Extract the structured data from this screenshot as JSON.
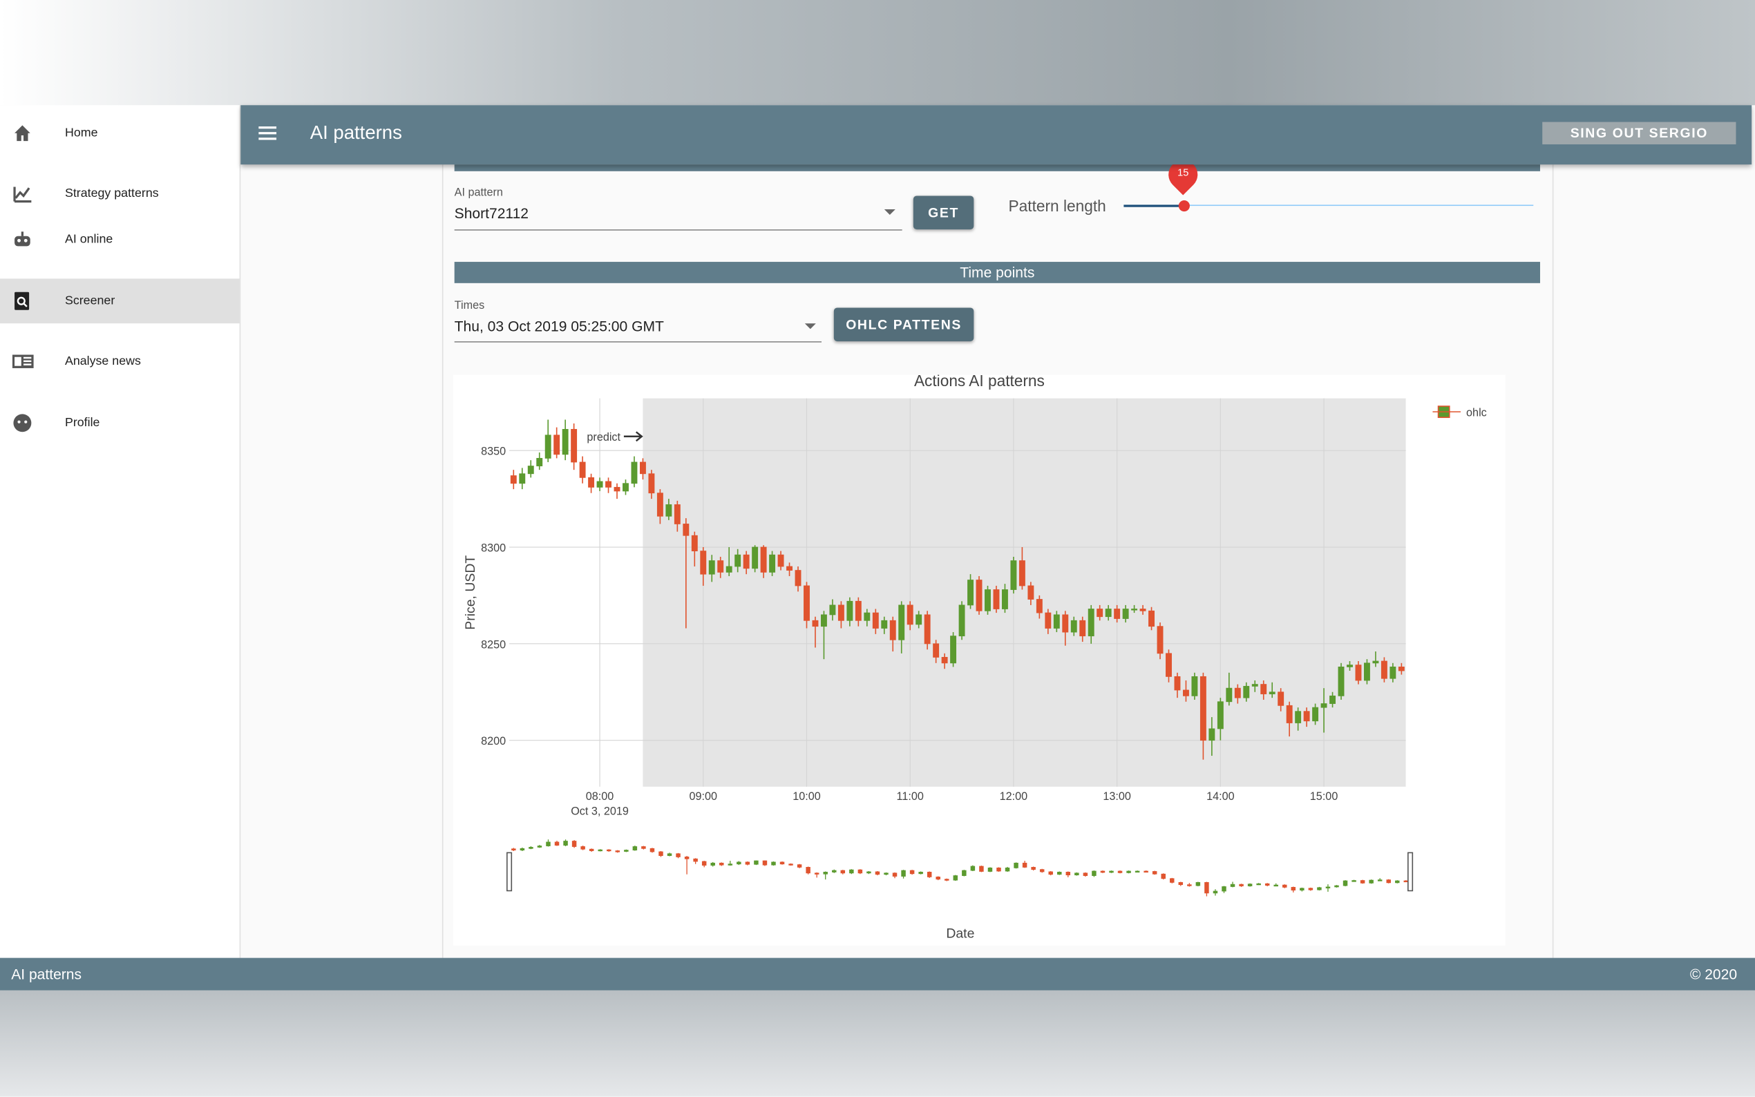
{
  "sidebar": {
    "items": [
      "Home",
      "Strategy patterns",
      "AI online",
      "Screener",
      "Analyse news",
      "Profile"
    ],
    "selected": "Screener"
  },
  "appbar": {
    "title": "AI patterns",
    "signout": "SING OUT SERGIO"
  },
  "form": {
    "pattern_label": "AI pattern",
    "pattern_value": "Short72112",
    "get_button": "GET",
    "length_label": "Pattern length",
    "length_value": 15,
    "section_title": "Time points",
    "times_label": "Times",
    "times_value": "Thu, 03 Oct 2019 05:25:00 GMT",
    "ohlc_button": "OHLC PATTENS"
  },
  "footer": {
    "left": "AI patterns",
    "right": "© 2020"
  },
  "chart_data": {
    "type": "candlestick",
    "title": "Actions AI patterns",
    "ylabel": "Price, USDT",
    "xlabel": "Date",
    "name": "ohlc",
    "increasing_color": "#5b9a2f",
    "decreasing_color": "#e0542f",
    "grid": true,
    "annotation": "predict",
    "shade_start": "2019-10-03 08:25",
    "xlim": [
      "2019-10-03 07:07:30",
      "2019-10-03 15:47:30"
    ],
    "xticks": [
      {
        "value": "2019-10-03 08:00",
        "label": "08:00"
      },
      {
        "value": "2019-10-03 09:00",
        "label": "09:00"
      },
      {
        "value": "2019-10-03 10:00",
        "label": "10:00"
      },
      {
        "value": "2019-10-03 11:00",
        "label": "11:00"
      },
      {
        "value": "2019-10-03 12:00",
        "label": "12:00"
      },
      {
        "value": "2019-10-03 13:00",
        "label": "13:00"
      },
      {
        "value": "2019-10-03 14:00",
        "label": "14:00"
      },
      {
        "value": "2019-10-03 15:00",
        "label": "15:00"
      }
    ],
    "xtick_date": "Oct 3, 2019",
    "ylim": [
      8176,
      8377
    ],
    "yticks": [
      8200,
      8250,
      8300,
      8350
    ],
    "x": [
      "2019-10-03 07:10",
      "2019-10-03 07:15",
      "2019-10-03 07:20",
      "2019-10-03 07:25",
      "2019-10-03 07:30",
      "2019-10-03 07:35",
      "2019-10-03 07:40",
      "2019-10-03 07:45",
      "2019-10-03 07:50",
      "2019-10-03 07:55",
      "2019-10-03 08:00",
      "2019-10-03 08:05",
      "2019-10-03 08:10",
      "2019-10-03 08:15",
      "2019-10-03 08:20",
      "2019-10-03 08:25",
      "2019-10-03 08:30",
      "2019-10-03 08:35",
      "2019-10-03 08:40",
      "2019-10-03 08:45",
      "2019-10-03 08:50",
      "2019-10-03 08:55",
      "2019-10-03 09:00",
      "2019-10-03 09:05",
      "2019-10-03 09:10",
      "2019-10-03 09:15",
      "2019-10-03 09:20",
      "2019-10-03 09:25",
      "2019-10-03 09:30",
      "2019-10-03 09:35",
      "2019-10-03 09:40",
      "2019-10-03 09:45",
      "2019-10-03 09:50",
      "2019-10-03 09:55",
      "2019-10-03 10:00",
      "2019-10-03 10:05",
      "2019-10-03 10:10",
      "2019-10-03 10:15",
      "2019-10-03 10:20",
      "2019-10-03 10:25",
      "2019-10-03 10:30",
      "2019-10-03 10:35",
      "2019-10-03 10:40",
      "2019-10-03 10:45",
      "2019-10-03 10:50",
      "2019-10-03 10:55",
      "2019-10-03 11:00",
      "2019-10-03 11:05",
      "2019-10-03 11:10",
      "2019-10-03 11:15",
      "2019-10-03 11:20",
      "2019-10-03 11:25",
      "2019-10-03 11:30",
      "2019-10-03 11:35",
      "2019-10-03 11:40",
      "2019-10-03 11:45",
      "2019-10-03 11:50",
      "2019-10-03 11:55",
      "2019-10-03 12:00",
      "2019-10-03 12:05",
      "2019-10-03 12:10",
      "2019-10-03 12:15",
      "2019-10-03 12:20",
      "2019-10-03 12:25",
      "2019-10-03 12:30",
      "2019-10-03 12:35",
      "2019-10-03 12:40",
      "2019-10-03 12:45",
      "2019-10-03 12:50",
      "2019-10-03 12:55",
      "2019-10-03 13:00",
      "2019-10-03 13:05",
      "2019-10-03 13:10",
      "2019-10-03 13:15",
      "2019-10-03 13:20",
      "2019-10-03 13:25",
      "2019-10-03 13:30",
      "2019-10-03 13:35",
      "2019-10-03 13:40",
      "2019-10-03 13:45",
      "2019-10-03 13:50",
      "2019-10-03 13:55",
      "2019-10-03 14:00",
      "2019-10-03 14:05",
      "2019-10-03 14:10",
      "2019-10-03 14:15",
      "2019-10-03 14:20",
      "2019-10-03 14:25",
      "2019-10-03 14:30",
      "2019-10-03 14:35",
      "2019-10-03 14:40",
      "2019-10-03 14:45",
      "2019-10-03 14:50",
      "2019-10-03 14:55",
      "2019-10-03 15:00",
      "2019-10-03 15:05",
      "2019-10-03 15:10",
      "2019-10-03 15:15",
      "2019-10-03 15:20",
      "2019-10-03 15:25",
      "2019-10-03 15:30",
      "2019-10-03 15:35",
      "2019-10-03 15:40",
      "2019-10-03 15:45"
    ],
    "open": [
      8337,
      8333,
      8338,
      8342,
      8346,
      8358,
      8348,
      8361,
      8344,
      8336,
      8331,
      8334,
      8331,
      8329,
      8333,
      8344,
      8338,
      8328,
      8316,
      8322,
      8312,
      8306,
      8298,
      8286,
      8293,
      8287,
      8290,
      8296,
      8289,
      8300,
      8287,
      8296,
      8290,
      8288,
      8280,
      8262,
      8259,
      8265,
      8270,
      8262,
      8272,
      8262,
      8266,
      8258,
      8262,
      8252,
      8270,
      8260,
      8265,
      8250,
      8243,
      8240,
      8254,
      8270,
      8283,
      8267,
      8278,
      8268,
      8278,
      8293,
      8280,
      8273,
      8266,
      8258,
      8265,
      8256,
      8262,
      8254,
      8268,
      8264,
      8268,
      8263,
      8268,
      8268,
      8267,
      8259,
      8245,
      8233,
      8226,
      8223,
      8233,
      8200,
      8206,
      8220,
      8227,
      8222,
      8228,
      8229,
      8224,
      8225,
      8218,
      8209,
      8215,
      8210,
      8217,
      8219,
      8223,
      8238,
      8239,
      8231,
      8240,
      8241,
      8232,
      8238
    ],
    "high": [
      8340,
      8341,
      8345,
      8349,
      8366,
      8362,
      8366,
      8364,
      8347,
      8338,
      8336,
      8336,
      8333,
      8335,
      8347,
      8346,
      8340,
      8330,
      8325,
      8324,
      8315,
      8308,
      8300,
      8296,
      8295,
      8300,
      8299,
      8298,
      8301,
      8301,
      8298,
      8298,
      8292,
      8290,
      8282,
      8264,
      8267,
      8273,
      8272,
      8274,
      8274,
      8268,
      8268,
      8264,
      8264,
      8272,
      8272,
      8267,
      8267,
      8252,
      8245,
      8256,
      8272,
      8286,
      8285,
      8280,
      8280,
      8281,
      8295,
      8300,
      8282,
      8275,
      8268,
      8267,
      8267,
      8264,
      8264,
      8270,
      8270,
      8270,
      8270,
      8270,
      8270,
      8270,
      8269,
      8261,
      8247,
      8235,
      8231,
      8235,
      8235,
      8212,
      8222,
      8235,
      8229,
      8230,
      8231,
      8231,
      8230,
      8227,
      8220,
      8217,
      8217,
      8219,
      8227,
      8225,
      8240,
      8241,
      8241,
      8242,
      8246,
      8243,
      8240,
      8240
    ],
    "low": [
      8330,
      8330,
      8336,
      8340,
      8344,
      8346,
      8345,
      8340,
      8333,
      8328,
      8329,
      8328,
      8325,
      8327,
      8331,
      8335,
      8325,
      8312,
      8314,
      8308,
      8258,
      8290,
      8280,
      8282,
      8284,
      8285,
      8287,
      8286,
      8287,
      8284,
      8285,
      8288,
      8285,
      8277,
      8258,
      8248,
      8242,
      8262,
      8258,
      8259,
      8259,
      8259,
      8255,
      8255,
      8246,
      8245,
      8257,
      8258,
      8247,
      8240,
      8237,
      8238,
      8252,
      8268,
      8265,
      8265,
      8266,
      8266,
      8276,
      8278,
      8270,
      8263,
      8255,
      8256,
      8249,
      8254,
      8251,
      8250,
      8262,
      8262,
      8261,
      8261,
      8266,
      8265,
      8257,
      8242,
      8230,
      8222,
      8220,
      8221,
      8190,
      8192,
      8200,
      8218,
      8219,
      8220,
      8225,
      8221,
      8222,
      8215,
      8202,
      8205,
      8207,
      8208,
      8204,
      8217,
      8221,
      8236,
      8229,
      8229,
      8238,
      8230,
      8230,
      8234
    ],
    "close": [
      8333,
      8338,
      8342,
      8346,
      8358,
      8348,
      8361,
      8344,
      8336,
      8331,
      8334,
      8331,
      8329,
      8333,
      8344,
      8338,
      8328,
      8316,
      8322,
      8312,
      8306,
      8298,
      8286,
      8293,
      8287,
      8290,
      8296,
      8289,
      8300,
      8287,
      8296,
      8290,
      8288,
      8280,
      8262,
      8259,
      8265,
      8270,
      8262,
      8272,
      8262,
      8266,
      8258,
      8262,
      8252,
      8270,
      8260,
      8265,
      8250,
      8243,
      8240,
      8254,
      8270,
      8283,
      8267,
      8278,
      8268,
      8278,
      8293,
      8280,
      8273,
      8266,
      8258,
      8265,
      8256,
      8262,
      8254,
      8268,
      8264,
      8268,
      8263,
      8268,
      8268,
      8267,
      8259,
      8245,
      8233,
      8226,
      8223,
      8233,
      8200,
      8206,
      8220,
      8227,
      8222,
      8228,
      8229,
      8224,
      8225,
      8218,
      8209,
      8215,
      8210,
      8217,
      8219,
      8223,
      8238,
      8239,
      8231,
      8240,
      8241,
      8232,
      8238,
      8236
    ]
  }
}
